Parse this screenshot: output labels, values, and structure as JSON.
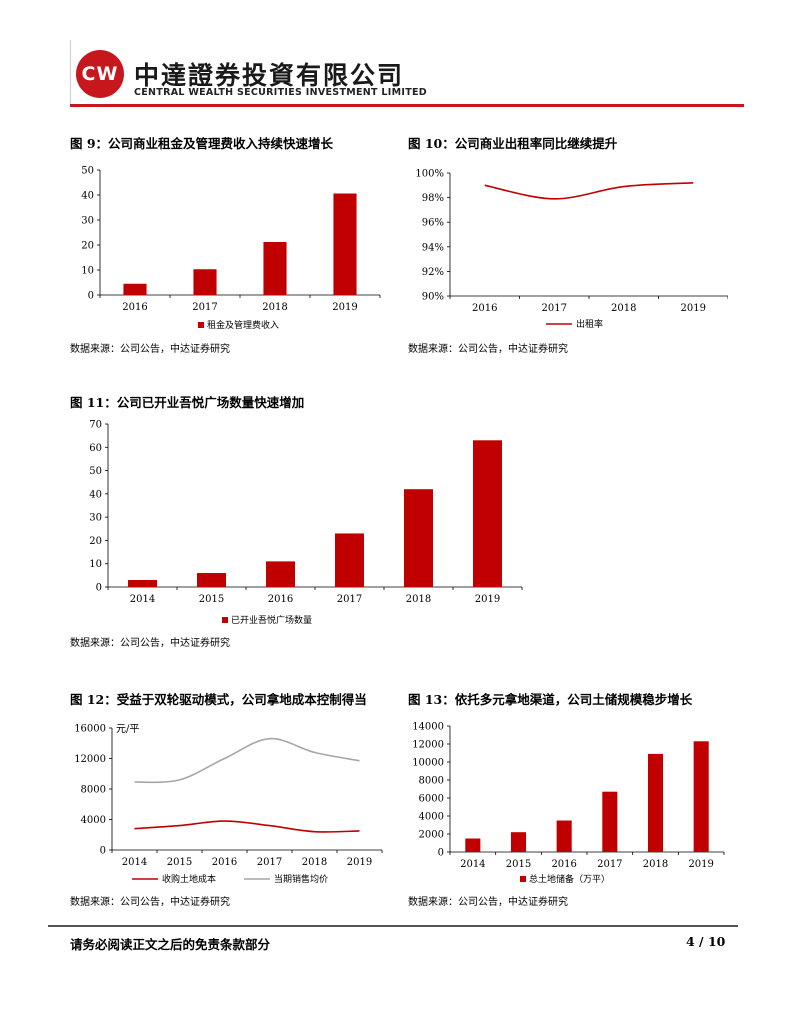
{
  "header": {
    "logo_text": "CW",
    "company_cn": "中達證券投資有限公司",
    "company_en": "CENTRAL WEALTH SECURITIES INVESTMENT LIMITED",
    "brand_color": "#c8161d"
  },
  "source_label": "数据来源：公司公告，中达证券研究",
  "figures": {
    "fig9": {
      "title": "图 9：公司商业租金及管理费收入持续快速增长",
      "chart_data": {
        "type": "bar",
        "categories": [
          "2016",
          "2017",
          "2018",
          "2019"
        ],
        "series": [
          {
            "name": "租金及管理费收入",
            "values": [
              4.5,
              10.3,
              21.2,
              40.6
            ]
          }
        ],
        "ylim": [
          0,
          50
        ],
        "yticks": [
          0,
          10,
          20,
          30,
          40,
          50
        ],
        "legend": "bottom",
        "color": "#c00000"
      }
    },
    "fig10": {
      "title": "图 10：公司商业出租率同比继续提升",
      "chart_data": {
        "type": "line",
        "categories": [
          "2016",
          "2017",
          "2018",
          "2019"
        ],
        "series": [
          {
            "name": "出租率",
            "values": [
              99.0,
              97.9,
              98.9,
              99.2
            ]
          }
        ],
        "ylim": [
          90,
          100
        ],
        "yticks": [
          "90%",
          "92%",
          "94%",
          "96%",
          "98%",
          "100%"
        ],
        "legend": "bottom",
        "color": "#c00000"
      }
    },
    "fig11": {
      "title": "图 11：公司已开业吾悦广场数量快速增加",
      "chart_data": {
        "type": "bar",
        "categories": [
          "2014",
          "2015",
          "2016",
          "2017",
          "2018",
          "2019"
        ],
        "series": [
          {
            "name": "已开业吾悦广场数量",
            "values": [
              3,
              6,
              11,
              23,
              42,
              63
            ]
          }
        ],
        "ylim": [
          0,
          70
        ],
        "yticks": [
          0,
          10,
          20,
          30,
          40,
          50,
          60,
          70
        ],
        "legend": "bottom",
        "color": "#c00000"
      }
    },
    "fig12": {
      "title": "图 12：受益于双轮驱动模式，公司拿地成本控制得当",
      "chart_data": {
        "type": "line",
        "categories": [
          "2014",
          "2015",
          "2016",
          "2017",
          "2018",
          "2019"
        ],
        "unit_label": "元/平",
        "series": [
          {
            "name": "收购土地成本",
            "values": [
              2800,
              3200,
              3800,
              3200,
              2400,
              2500
            ],
            "color": "#c00000"
          },
          {
            "name": "当期销售均价",
            "values": [
              8900,
              9200,
              12000,
              14600,
              12800,
              11700
            ],
            "color": "#a6a6a6"
          }
        ],
        "ylim": [
          0,
          16000
        ],
        "yticks": [
          0,
          4000,
          8000,
          12000,
          16000
        ],
        "legend": "bottom"
      }
    },
    "fig13": {
      "title": "图 13：依托多元拿地渠道，公司土储规模稳步增长",
      "chart_data": {
        "type": "bar",
        "categories": [
          "2014",
          "2015",
          "2016",
          "2017",
          "2018",
          "2019"
        ],
        "series": [
          {
            "name": "总土地储备（万平）",
            "values": [
              1500,
              2200,
              3500,
              6700,
              10900,
              12300
            ]
          }
        ],
        "ylim": [
          0,
          14000
        ],
        "yticks": [
          0,
          2000,
          4000,
          6000,
          8000,
          10000,
          12000,
          14000
        ],
        "legend": "bottom",
        "color": "#c00000"
      }
    }
  },
  "footer": {
    "disclaimer": "请务必阅读正文之后的免责条款部分",
    "page": "4 / 10"
  }
}
